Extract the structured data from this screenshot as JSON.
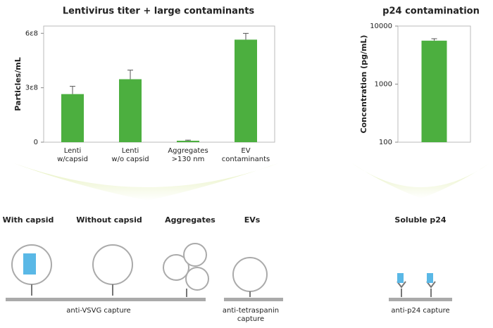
{
  "chart_data": [
    {
      "type": "bar",
      "title": "Lentivirus titer + large contaminants",
      "ylabel": "Particles/mL",
      "categories": [
        "Lenti\nw/capsid",
        "Lenti\nw/o capsid",
        "Aggregates\n>130 nm",
        "EV\ncontaminants"
      ],
      "values": [
        265000000,
        347000000,
        8000000,
        565000000
      ],
      "errors": [
        43000000,
        50000000,
        3000000,
        35000000
      ],
      "color": "#4caf3f",
      "ylim": [
        0,
        640000000
      ],
      "yticks": [
        0,
        {
          "value": 300000000,
          "label": "3ε8"
        },
        {
          "value": 600000000,
          "label": "6ε8"
        }
      ]
    },
    {
      "type": "bar",
      "title": "p24 contamination",
      "ylabel": "Concentration (pg/mL)",
      "log_scale": true,
      "categories": [
        null
      ],
      "values": [
        5600
      ],
      "errors": [
        450
      ],
      "color": "#4caf3f",
      "ylim": [
        100,
        10000
      ],
      "yticks": [
        100,
        1000,
        10000
      ]
    }
  ],
  "diagram": {
    "labels": [
      "With capsid",
      "Without capsid",
      "Aggregates",
      "EVs",
      "Soluble p24"
    ],
    "captions": [
      "anti-VSVG capture",
      "anti-tetraspanin\ncapture",
      "anti-p24 capture"
    ]
  }
}
